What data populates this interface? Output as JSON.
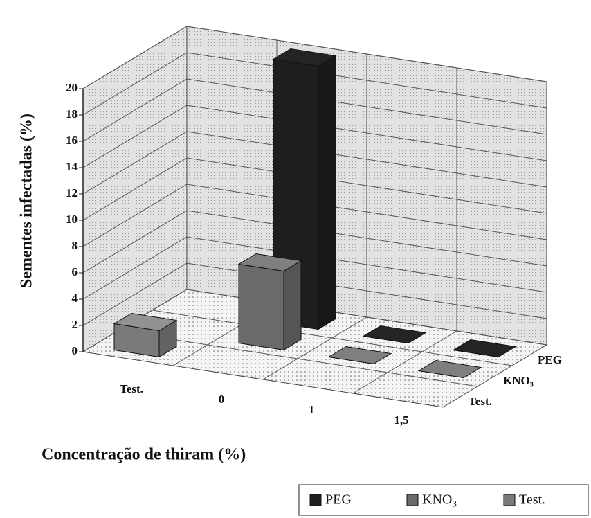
{
  "chart_data": {
    "type": "bar3d",
    "y_label": "Sementes infectadas (%)",
    "x_label": "Concentração de thiram (%)",
    "categories": [
      "Test.",
      "0",
      "1",
      "1,5"
    ],
    "series": [
      {
        "name": "Test.",
        "color": "#7a7a7a",
        "values": [
          2,
          null,
          null,
          null
        ]
      },
      {
        "name": "KNO₃",
        "color": "#6a6a6a",
        "values": [
          null,
          6,
          0,
          0
        ]
      },
      {
        "name": "PEG",
        "color": "#1e1e1e",
        "values": [
          null,
          20,
          0,
          0
        ]
      }
    ],
    "legend_order": [
      2,
      1,
      0
    ],
    "ylim": [
      0,
      20
    ],
    "yticks": [
      0,
      2,
      4,
      6,
      8,
      10,
      12,
      14,
      16,
      18,
      20
    ],
    "grid": true
  }
}
